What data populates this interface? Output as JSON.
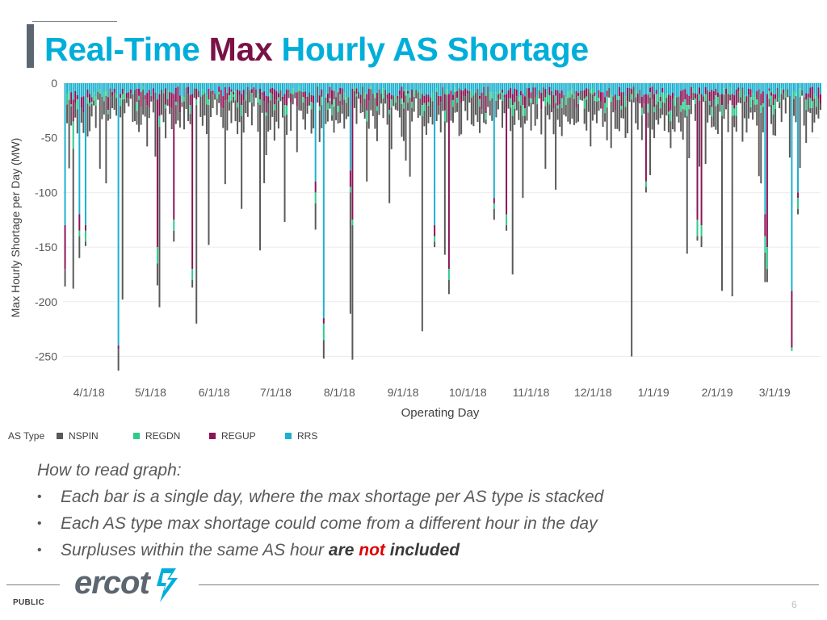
{
  "slide": {
    "title_part1": "Real-Time ",
    "title_part2": "Max",
    "title_part3": " Hourly AS Shortage"
  },
  "colors": {
    "title_blue": "#00aeda",
    "title_red": "#7a1245",
    "nspin": "#595959",
    "regdn": "#2ecc8a",
    "regup": "#8b1456",
    "rrs": "#1cb1cf"
  },
  "legend": {
    "title": "AS Type",
    "items": [
      {
        "label": "NSPIN",
        "color": "#595959"
      },
      {
        "label": "REGDN",
        "color": "#2ecc8a"
      },
      {
        "label": "REGUP",
        "color": "#8b1456"
      },
      {
        "label": "RRS",
        "color": "#1cb1cf"
      }
    ]
  },
  "notes": {
    "heading": "How to read graph:",
    "bullet": "•",
    "items": [
      {
        "text": "Each bar is a single day, where the max shortage per AS type is stacked"
      },
      {
        "text": "Each AS type max shortage could come from a different hour in the day"
      },
      {
        "text": "Surpluses within the same AS hour ",
        "bold1": "are ",
        "bold_neg": "not",
        "bold2": " included"
      }
    ]
  },
  "footer": {
    "logo_text": "ercot",
    "logo_icon": "ercot-lightning-icon",
    "public_label": "PUBLIC",
    "page_number": "6"
  },
  "chart_data": {
    "type": "bar",
    "stacked": true,
    "title": "",
    "xlabel": "Operating Day",
    "ylabel": "Max Hourly Shortage per Day (MW)",
    "ylim": [
      -270,
      0
    ],
    "yticks": [
      0,
      -50,
      -100,
      -150,
      -200,
      -250
    ],
    "xlim": [
      "2018-03-27",
      "2019-03-31"
    ],
    "xticks": [
      {
        "date": "2018-04-01",
        "label": "4/1/18"
      },
      {
        "date": "2018-05-01",
        "label": "5/1/18"
      },
      {
        "date": "2018-06-01",
        "label": "6/1/18"
      },
      {
        "date": "2018-07-01",
        "label": "7/1/18"
      },
      {
        "date": "2018-08-01",
        "label": "8/1/18"
      },
      {
        "date": "2018-09-01",
        "label": "9/1/18"
      },
      {
        "date": "2018-10-01",
        "label": "10/1/18"
      },
      {
        "date": "2018-11-01",
        "label": "11/1/18"
      },
      {
        "date": "2018-12-01",
        "label": "12/1/18"
      },
      {
        "date": "2019-01-01",
        "label": "1/1/19"
      },
      {
        "date": "2019-02-01",
        "label": "2/1/19"
      },
      {
        "date": "2019-03-01",
        "label": "3/1/19"
      }
    ],
    "grid": true,
    "legend_position": "bottom-left",
    "typical_days": {
      "description": "Typical days (the bulk of the ~370 daily bars) show shortages stacked RRS -5 to -15, REGUP -5 to -15, REGDN -3 to -10, NSPIN -5 to -40 MW."
    },
    "notable_days": [
      {
        "date": "2018-03-28",
        "RRS": -130,
        "REGUP": -40,
        "REGDN": 0,
        "NSPIN": -16
      },
      {
        "date": "2018-04-01",
        "RRS": -15,
        "REGUP": -20,
        "REGDN": -25,
        "NSPIN": -128
      },
      {
        "date": "2018-04-04",
        "RRS": -120,
        "REGUP": -15,
        "REGDN": -5,
        "NSPIN": -20
      },
      {
        "date": "2018-04-07",
        "RRS": -130,
        "REGUP": -5,
        "REGDN": -10,
        "NSPIN": -4
      },
      {
        "date": "2018-04-23",
        "RRS": -240,
        "REGUP": -3,
        "REGDN": 0,
        "NSPIN": -20
      },
      {
        "date": "2018-04-25",
        "RRS": -5,
        "REGUP": -5,
        "REGDN": -5,
        "NSPIN": -183
      },
      {
        "date": "2018-05-12",
        "RRS": -15,
        "REGUP": -135,
        "REGDN": -15,
        "NSPIN": -20
      },
      {
        "date": "2018-05-13",
        "RRS": -10,
        "REGUP": -20,
        "REGDN": -10,
        "NSPIN": -165
      },
      {
        "date": "2018-05-20",
        "RRS": -10,
        "REGUP": -115,
        "REGDN": -10,
        "NSPIN": -10
      },
      {
        "date": "2018-05-29",
        "RRS": -10,
        "REGUP": -160,
        "REGDN": -10,
        "NSPIN": -7
      },
      {
        "date": "2018-05-31",
        "RRS": -5,
        "REGUP": -10,
        "REGDN": -5,
        "NSPIN": -200
      },
      {
        "date": "2018-06-06",
        "RRS": -5,
        "REGUP": -10,
        "REGDN": -5,
        "NSPIN": -128
      },
      {
        "date": "2018-06-22",
        "RRS": -10,
        "REGUP": -10,
        "REGDN": -10,
        "NSPIN": -85
      },
      {
        "date": "2018-07-01",
        "RRS": -5,
        "REGUP": -10,
        "REGDN": -5,
        "NSPIN": -133
      },
      {
        "date": "2018-07-13",
        "RRS": -10,
        "REGUP": -10,
        "REGDN": -10,
        "NSPIN": -97
      },
      {
        "date": "2018-07-28",
        "RRS": -90,
        "REGUP": -10,
        "REGDN": -10,
        "NSPIN": -24
      },
      {
        "date": "2018-08-01",
        "RRS": -215,
        "REGUP": -5,
        "REGDN": -15,
        "NSPIN": -17
      },
      {
        "date": "2018-08-14",
        "RRS": -80,
        "REGUP": -15,
        "REGDN": -5,
        "NSPIN": -111
      },
      {
        "date": "2018-08-15",
        "RRS": -5,
        "REGUP": -120,
        "REGDN": -5,
        "NSPIN": -123
      },
      {
        "date": "2018-08-22",
        "RRS": -10,
        "REGUP": -15,
        "REGDN": -10,
        "NSPIN": -55
      },
      {
        "date": "2018-09-18",
        "RRS": -10,
        "REGUP": -10,
        "REGDN": -10,
        "NSPIN": -197
      },
      {
        "date": "2018-09-24",
        "RRS": -130,
        "REGUP": -10,
        "REGDN": -5,
        "NSPIN": -5
      },
      {
        "date": "2018-09-29",
        "RRS": -10,
        "REGUP": -15,
        "REGDN": -10,
        "NSPIN": -122
      },
      {
        "date": "2018-10-01",
        "RRS": -10,
        "REGUP": -160,
        "REGDN": -10,
        "NSPIN": -13
      },
      {
        "date": "2018-10-23",
        "RRS": -105,
        "REGUP": -5,
        "REGDN": -5,
        "NSPIN": -10
      },
      {
        "date": "2018-10-29",
        "RRS": -10,
        "REGUP": -110,
        "REGDN": -10,
        "NSPIN": -5
      },
      {
        "date": "2018-11-01",
        "RRS": -10,
        "REGUP": -10,
        "REGDN": -10,
        "NSPIN": -145
      },
      {
        "date": "2018-11-06",
        "RRS": -10,
        "REGUP": -10,
        "REGDN": -10,
        "NSPIN": -75
      },
      {
        "date": "2018-12-29",
        "RRS": -5,
        "REGUP": -5,
        "REGDN": -5,
        "NSPIN": -235
      },
      {
        "date": "2019-01-05",
        "RRS": -10,
        "REGUP": -80,
        "REGDN": -5,
        "NSPIN": -5
      },
      {
        "date": "2019-01-25",
        "RRS": -10,
        "REGUP": -10,
        "REGDN": -10,
        "NSPIN": -126
      },
      {
        "date": "2019-01-30",
        "RRS": -10,
        "REGUP": -115,
        "REGDN": -15,
        "NSPIN": -4
      },
      {
        "date": "2019-02-01",
        "RRS": -10,
        "REGUP": -120,
        "REGDN": -10,
        "NSPIN": -10
      },
      {
        "date": "2019-02-11",
        "RRS": -10,
        "REGUP": -10,
        "REGDN": -10,
        "NSPIN": -160
      },
      {
        "date": "2019-02-16",
        "RRS": -10,
        "REGUP": -10,
        "REGDN": -10,
        "NSPIN": -165
      },
      {
        "date": "2019-03-04",
        "RRS": -120,
        "REGUP": -20,
        "REGDN": -15,
        "NSPIN": -27
      },
      {
        "date": "2019-03-05",
        "RRS": -10,
        "REGUP": -140,
        "REGDN": -20,
        "NSPIN": -12
      },
      {
        "date": "2019-03-17",
        "RRS": -190,
        "REGUP": -52,
        "REGDN": -3,
        "NSPIN": 0
      },
      {
        "date": "2019-03-20",
        "RRS": -100,
        "REGUP": -5,
        "REGDN": -10,
        "NSPIN": -5
      }
    ]
  }
}
